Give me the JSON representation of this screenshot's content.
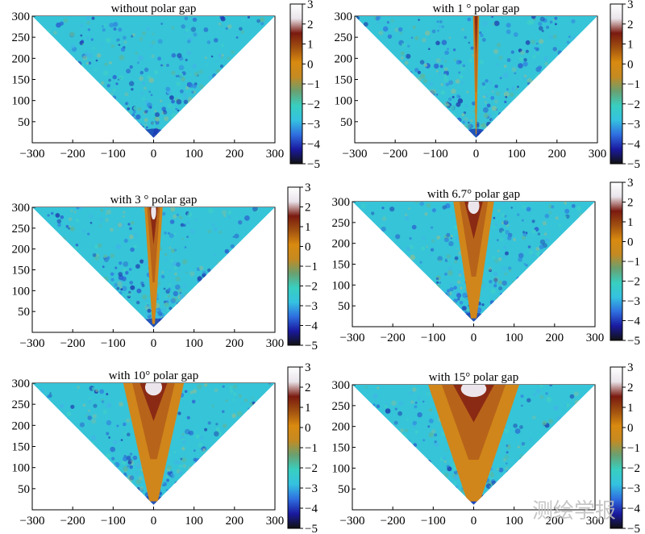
{
  "chart_data": [
    {
      "type": "heatmap",
      "title": "without polar gap",
      "gap_deg": 0,
      "xlim": [
        -300,
        300
      ],
      "ylim": [
        0,
        300
      ],
      "xticks": [
        -300,
        -200,
        -100,
        0,
        100,
        200,
        300
      ],
      "yticks": [
        50,
        100,
        150,
        200,
        250,
        300
      ],
      "clim": [
        -5,
        3
      ],
      "cticks": [
        3,
        2,
        1,
        0,
        -1,
        -2,
        -3,
        -4,
        -5
      ]
    },
    {
      "type": "heatmap",
      "title": "with 1 ° polar gap",
      "gap_deg": 1,
      "xlim": [
        -300,
        300
      ],
      "ylim": [
        0,
        300
      ],
      "xticks": [
        -300,
        -200,
        -100,
        0,
        100,
        200,
        300
      ],
      "yticks": [
        50,
        100,
        150,
        200,
        250,
        300
      ],
      "clim": [
        -5,
        3
      ],
      "cticks": [
        3,
        2,
        1,
        0,
        -1,
        -2,
        -3,
        -4,
        -5
      ]
    },
    {
      "type": "heatmap",
      "title": "with 3 ° polar gap",
      "gap_deg": 3,
      "xlim": [
        -300,
        300
      ],
      "ylim": [
        0,
        300
      ],
      "xticks": [
        -300,
        -200,
        -100,
        0,
        100,
        200,
        300
      ],
      "yticks": [
        50,
        100,
        150,
        200,
        250,
        300
      ],
      "clim": [
        -5,
        3
      ],
      "cticks": [
        3,
        2,
        1,
        0,
        -1,
        -2,
        -3,
        -4,
        -5
      ]
    },
    {
      "type": "heatmap",
      "title": "with 6.7° polar gap",
      "gap_deg": 6.7,
      "xlim": [
        -300,
        300
      ],
      "ylim": [
        0,
        300
      ],
      "xticks": [
        -300,
        -200,
        -100,
        0,
        100,
        200,
        300
      ],
      "yticks": [
        50,
        100,
        150,
        200,
        250,
        300
      ],
      "clim": [
        -5,
        3
      ],
      "cticks": [
        3,
        2,
        1,
        0,
        -1,
        -2,
        -3,
        -4,
        -5
      ]
    },
    {
      "type": "heatmap",
      "title": "with 10° polar gap",
      "gap_deg": 10,
      "xlim": [
        -300,
        300
      ],
      "ylim": [
        0,
        300
      ],
      "xticks": [
        -300,
        -200,
        -100,
        0,
        100,
        200,
        300
      ],
      "yticks": [
        50,
        100,
        150,
        200,
        250,
        300
      ],
      "clim": [
        -5,
        3
      ],
      "cticks": [
        3,
        2,
        1,
        0,
        -1,
        -2,
        -3,
        -4,
        -5
      ]
    },
    {
      "type": "heatmap",
      "title": "with 15° polar gap",
      "gap_deg": 15,
      "xlim": [
        -300,
        300
      ],
      "ylim": [
        0,
        300
      ],
      "xticks": [
        -300,
        -200,
        -100,
        0,
        100,
        200,
        300
      ],
      "yticks": [
        50,
        100,
        150,
        200,
        250,
        300
      ],
      "clim": [
        -5,
        3
      ],
      "cticks": [
        3,
        2,
        1,
        0,
        -1,
        -2,
        -3,
        -4,
        -5
      ]
    }
  ],
  "watermark": "测绘学报",
  "colors": {
    "colormap": [
      "#111111",
      "#1a1aa0",
      "#2f6fe0",
      "#35c2e0",
      "#38cfc0",
      "#6aa070",
      "#c58a22",
      "#d98a10",
      "#a05010",
      "#7a1a10",
      "#e9e4ea",
      "#ffffff"
    ]
  }
}
